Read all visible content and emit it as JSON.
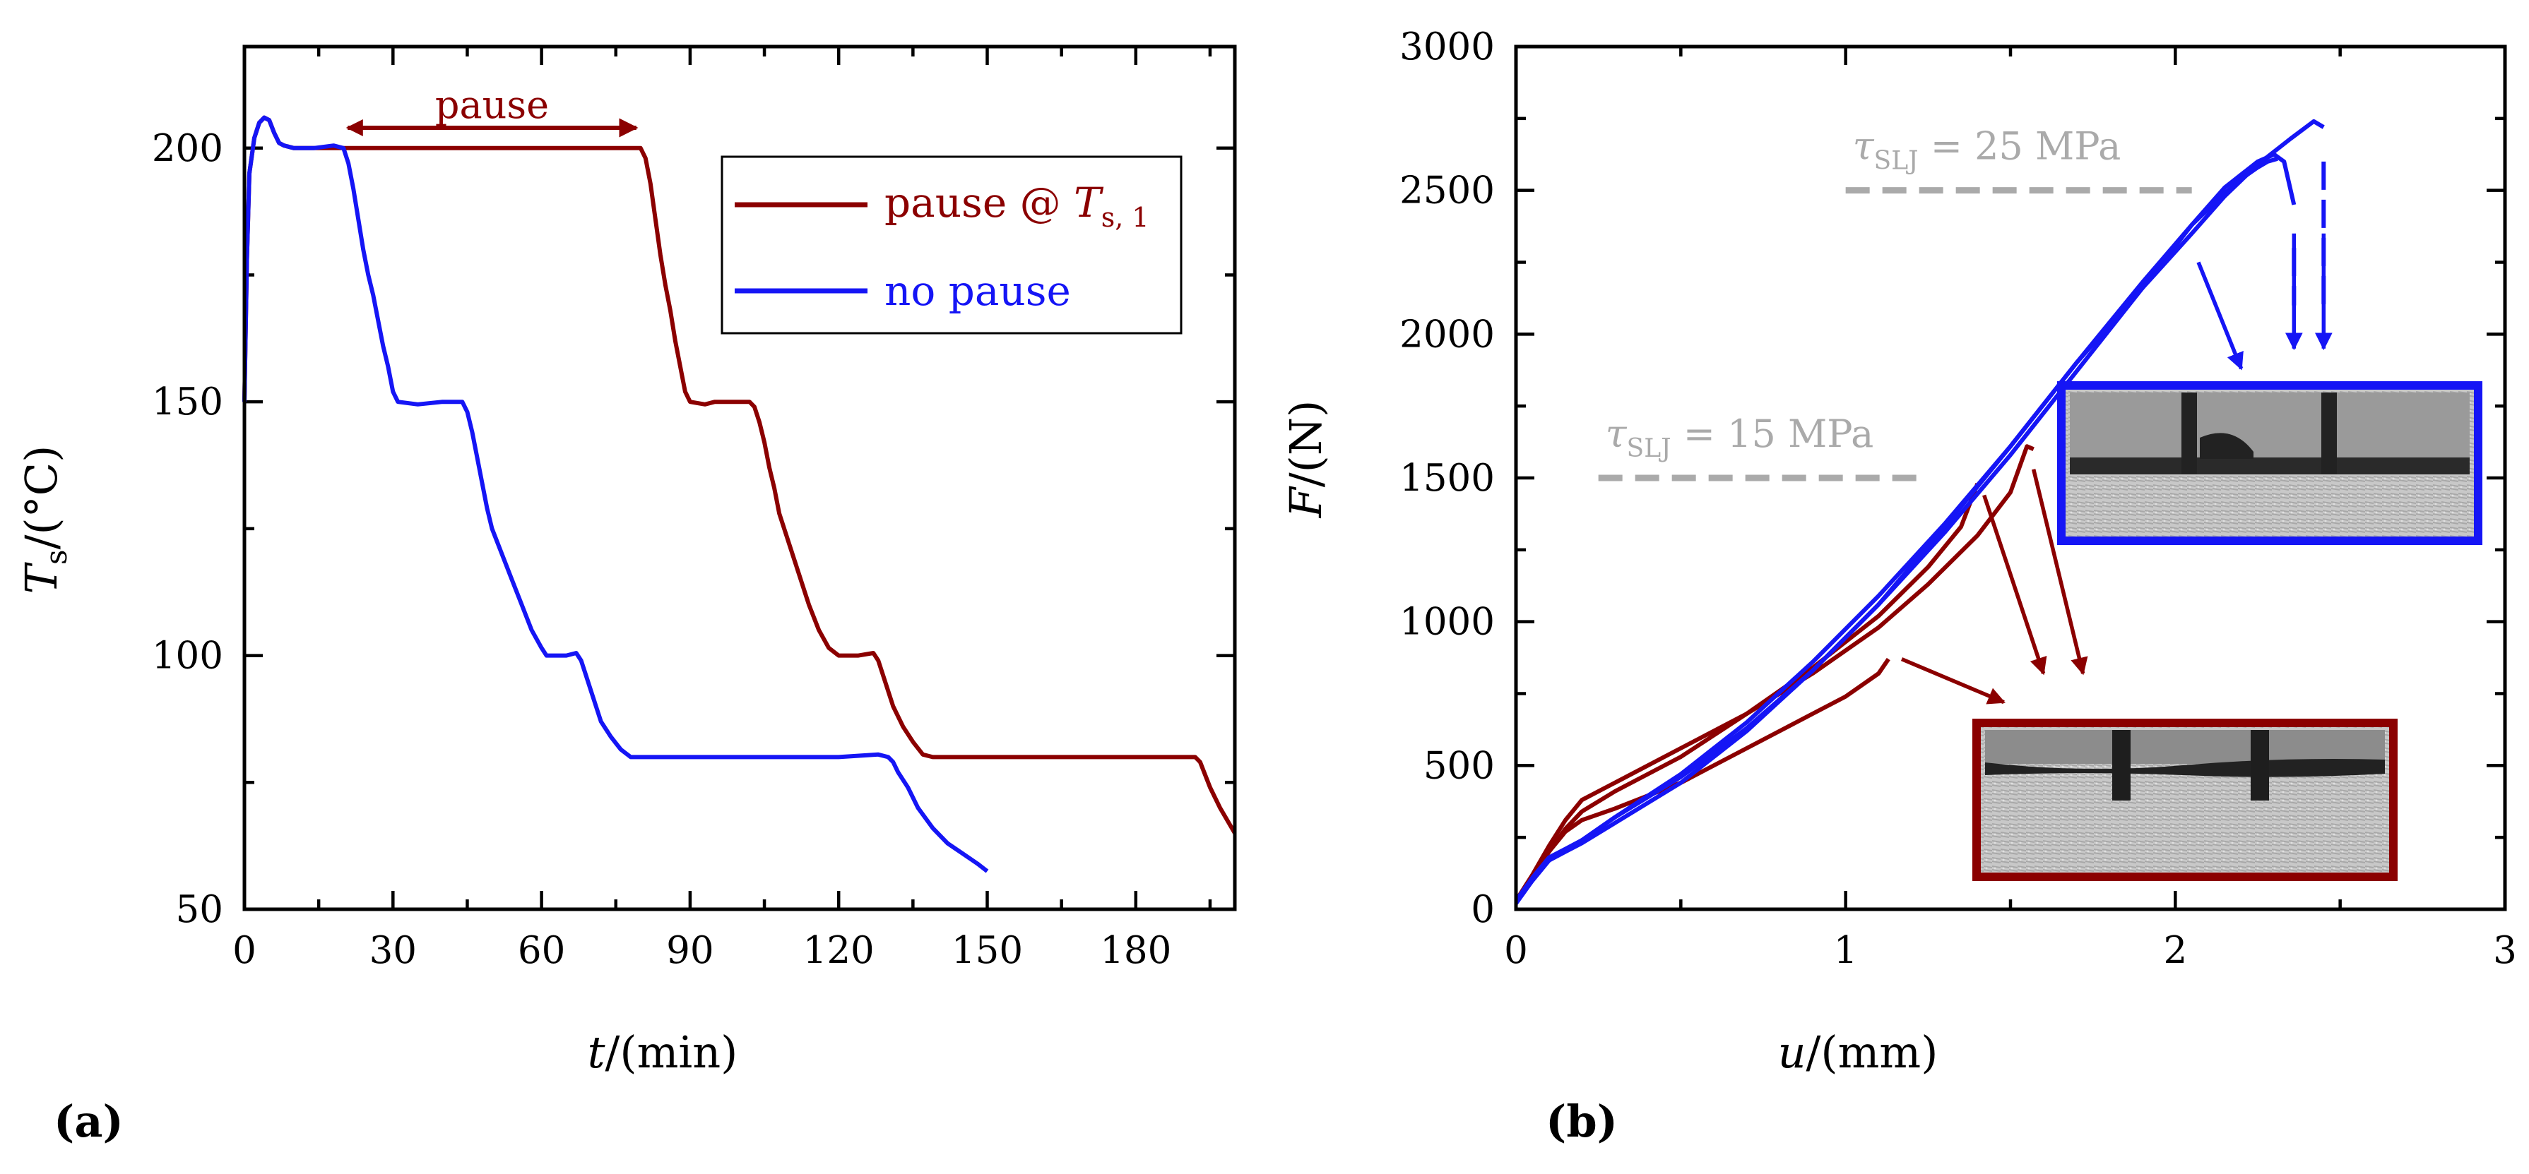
{
  "figure": {
    "panel_a_label": "(a)",
    "panel_b_label": "(b)"
  },
  "colors": {
    "red": "#8B0000",
    "blue": "#1515F5",
    "gray": "#AAAAAA",
    "axis": "#000000"
  },
  "chart_data": [
    {
      "id": "a",
      "type": "line",
      "xlabel_var": "t",
      "xlabel_unit": "/(min)",
      "ylabel_var": "T",
      "ylabel_sub": "s",
      "ylabel_unit": "/(°C)",
      "xlim": [
        0,
        200
      ],
      "ylim": [
        50,
        220
      ],
      "xticks": [
        0,
        30,
        60,
        90,
        120,
        150,
        180
      ],
      "yticks": [
        50,
        100,
        150,
        200
      ],
      "annotation": {
        "text": "pause",
        "x_start": 20,
        "x_end": 80,
        "y": 204
      },
      "legend": {
        "location": "top-right",
        "entries": [
          {
            "label": "pause @ ",
            "label_var": "T",
            "label_sub": "s, 1",
            "series": "pause"
          },
          {
            "label": "no pause",
            "series": "no_pause"
          }
        ]
      },
      "series": [
        {
          "name": "pause",
          "color": "#8B0000",
          "points": [
            [
              0,
              150
            ],
            [
              0.5,
              178
            ],
            [
              1,
              195
            ],
            [
              2,
              202
            ],
            [
              3,
              205
            ],
            [
              4,
              206
            ],
            [
              5,
              205.5
            ],
            [
              6,
              203
            ],
            [
              7,
              201
            ],
            [
              8,
              200.5
            ],
            [
              10,
              200
            ],
            [
              14,
              200
            ],
            [
              20,
              200
            ],
            [
              30,
              200
            ],
            [
              40,
              200
            ],
            [
              50,
              200
            ],
            [
              60,
              200
            ],
            [
              70,
              200
            ],
            [
              78,
              200
            ],
            [
              80,
              200
            ],
            [
              81,
              198
            ],
            [
              82,
              193
            ],
            [
              83,
              186
            ],
            [
              84,
              179
            ],
            [
              85,
              173
            ],
            [
              86,
              168
            ],
            [
              87,
              162
            ],
            [
              88,
              157
            ],
            [
              89,
              152
            ],
            [
              90,
              150
            ],
            [
              93,
              149.5
            ],
            [
              95,
              150
            ],
            [
              98,
              150
            ],
            [
              100,
              150
            ],
            [
              102,
              150
            ],
            [
              103,
              149
            ],
            [
              104,
              146
            ],
            [
              105,
              142
            ],
            [
              106,
              137
            ],
            [
              107,
              133
            ],
            [
              108,
              128
            ],
            [
              110,
              122
            ],
            [
              112,
              116
            ],
            [
              114,
              110
            ],
            [
              116,
              105
            ],
            [
              118,
              101.5
            ],
            [
              120,
              100
            ],
            [
              124,
              100
            ],
            [
              127,
              100.5
            ],
            [
              128,
              99
            ],
            [
              129,
              96
            ],
            [
              130,
              93
            ],
            [
              131,
              90
            ],
            [
              133,
              86
            ],
            [
              135,
              83
            ],
            [
              137,
              80.5
            ],
            [
              139,
              80
            ],
            [
              150,
              80
            ],
            [
              160,
              80
            ],
            [
              170,
              80
            ],
            [
              180,
              80
            ],
            [
              190,
              80
            ],
            [
              192,
              80
            ],
            [
              193,
              79
            ],
            [
              195,
              74
            ],
            [
              197,
              70
            ],
            [
              200,
              65
            ]
          ]
        },
        {
          "name": "no_pause",
          "color": "#1515F5",
          "points": [
            [
              0,
              150
            ],
            [
              0.5,
              178
            ],
            [
              1,
              195
            ],
            [
              2,
              202
            ],
            [
              3,
              205
            ],
            [
              4,
              206
            ],
            [
              5,
              205.5
            ],
            [
              6,
              203
            ],
            [
              7,
              201
            ],
            [
              8,
              200.5
            ],
            [
              10,
              200
            ],
            [
              14,
              200
            ],
            [
              18,
              200.5
            ],
            [
              20,
              200
            ],
            [
              21,
              197
            ],
            [
              22,
              192
            ],
            [
              23,
              186
            ],
            [
              24,
              180
            ],
            [
              25,
              175
            ],
            [
              26,
              171
            ],
            [
              27,
              166
            ],
            [
              28,
              161
            ],
            [
              29,
              157
            ],
            [
              30,
              152
            ],
            [
              31,
              150
            ],
            [
              35,
              149.5
            ],
            [
              40,
              150
            ],
            [
              44,
              150
            ],
            [
              45,
              148
            ],
            [
              46,
              144
            ],
            [
              47,
              139
            ],
            [
              48,
              134
            ],
            [
              49,
              129
            ],
            [
              50,
              125
            ],
            [
              52,
              120
            ],
            [
              54,
              115
            ],
            [
              56,
              110
            ],
            [
              58,
              105
            ],
            [
              60,
              101.5
            ],
            [
              61,
              100
            ],
            [
              65,
              100
            ],
            [
              67,
              100.5
            ],
            [
              68,
              99
            ],
            [
              69,
              96
            ],
            [
              70,
              93
            ],
            [
              71,
              90
            ],
            [
              72,
              87
            ],
            [
              74,
              84
            ],
            [
              76,
              81.5
            ],
            [
              78,
              80
            ],
            [
              90,
              80
            ],
            [
              100,
              80
            ],
            [
              110,
              80
            ],
            [
              120,
              80
            ],
            [
              128,
              80.5
            ],
            [
              130,
              80
            ],
            [
              131,
              79
            ],
            [
              132,
              77
            ],
            [
              134,
              74
            ],
            [
              136,
              70
            ],
            [
              139,
              66
            ],
            [
              142,
              63
            ],
            [
              145,
              61
            ],
            [
              148,
              59
            ],
            [
              150,
              57.5
            ]
          ]
        }
      ]
    },
    {
      "id": "b",
      "type": "line",
      "xlabel_var": "u",
      "xlabel_unit": "/(mm)",
      "ylabel_var": "F",
      "ylabel_unit": "/(N)",
      "xlim": [
        0,
        3
      ],
      "ylim": [
        0,
        3000
      ],
      "xticks": [
        0,
        1,
        2,
        3
      ],
      "yticks": [
        0,
        500,
        1000,
        1500,
        2000,
        2500,
        3000
      ],
      "reference_lines": [
        {
          "value": 2500,
          "x_start": 1.0,
          "x_end": 2.05,
          "text_var": "τ",
          "text_sub": "SLJ",
          "text_rest": " = 25 MPa",
          "color": "#AAAAAA"
        },
        {
          "value": 1500,
          "x_start": 0.25,
          "x_end": 1.25,
          "text_var": "τ",
          "text_sub": "SLJ",
          "text_rest": " = 15 MPa",
          "color": "#AAAAAA"
        }
      ],
      "blue_curves": [
        {
          "name": "blue-1",
          "points": [
            [
              0,
              20
            ],
            [
              0.05,
              100
            ],
            [
              0.1,
              170
            ],
            [
              0.15,
              200
            ],
            [
              0.2,
              230
            ],
            [
              0.3,
              300
            ],
            [
              0.5,
              440
            ],
            [
              0.7,
              620
            ],
            [
              0.9,
              830
            ],
            [
              1.1,
              1060
            ],
            [
              1.3,
              1310
            ],
            [
              1.5,
              1580
            ],
            [
              1.7,
              1870
            ],
            [
              1.9,
              2160
            ],
            [
              2.05,
              2380
            ],
            [
              2.15,
              2510
            ],
            [
              2.25,
              2600
            ],
            [
              2.3,
              2625
            ],
            [
              2.33,
              2600
            ],
            [
              2.36,
              2450
            ]
          ],
          "drop": [
            [
              2.36,
              2300
            ],
            [
              2.36,
              2100
            ]
          ]
        },
        {
          "name": "blue-2",
          "points": [
            [
              0,
              30
            ],
            [
              0.05,
              110
            ],
            [
              0.1,
              180
            ],
            [
              0.15,
              210
            ],
            [
              0.2,
              240
            ],
            [
              0.3,
              320
            ],
            [
              0.5,
              470
            ],
            [
              0.7,
              650
            ],
            [
              0.9,
              860
            ],
            [
              1.1,
              1090
            ],
            [
              1.3,
              1340
            ],
            [
              1.5,
              1610
            ],
            [
              1.7,
              1900
            ],
            [
              1.9,
              2180
            ],
            [
              2.05,
              2380
            ],
            [
              2.15,
              2490
            ],
            [
              2.2,
              2540
            ],
            [
              2.25,
              2580
            ],
            [
              2.28,
              2600
            ],
            [
              2.31,
              2610
            ]
          ]
        },
        {
          "name": "blue-3",
          "points": [
            [
              0,
              25
            ],
            [
              0.05,
              100
            ],
            [
              0.1,
              170
            ],
            [
              0.15,
              205
            ],
            [
              0.2,
              240
            ],
            [
              0.3,
              320
            ],
            [
              0.5,
              460
            ],
            [
              0.7,
              630
            ],
            [
              0.9,
              830
            ],
            [
              1.1,
              1060
            ],
            [
              1.3,
              1330
            ],
            [
              1.5,
              1610
            ],
            [
              1.7,
              1900
            ],
            [
              1.9,
              2160
            ],
            [
              2.05,
              2350
            ],
            [
              2.15,
              2480
            ],
            [
              2.25,
              2590
            ],
            [
              2.35,
              2680
            ],
            [
              2.42,
              2740
            ],
            [
              2.45,
              2720
            ]
          ],
          "drop": [
            [
              2.45,
              2600
            ],
            [
              2.45,
              2100
            ]
          ]
        }
      ],
      "red_curves": [
        {
          "name": "red-1",
          "points": [
            [
              0,
              30
            ],
            [
              0.05,
              120
            ],
            [
              0.1,
              220
            ],
            [
              0.15,
              310
            ],
            [
              0.2,
              380
            ],
            [
              0.3,
              440
            ],
            [
              0.5,
              560
            ],
            [
              0.7,
              680
            ],
            [
              0.9,
              820
            ],
            [
              1.1,
              980
            ],
            [
              1.25,
              1130
            ],
            [
              1.4,
              1300
            ],
            [
              1.5,
              1450
            ],
            [
              1.55,
              1610
            ],
            [
              1.57,
              1600
            ]
          ]
        },
        {
          "name": "red-2",
          "points": [
            [
              0,
              30
            ],
            [
              0.05,
              110
            ],
            [
              0.1,
              200
            ],
            [
              0.15,
              280
            ],
            [
              0.2,
              340
            ],
            [
              0.3,
              410
            ],
            [
              0.5,
              530
            ],
            [
              0.7,
              680
            ],
            [
              0.9,
              840
            ],
            [
              1.1,
              1020
            ],
            [
              1.25,
              1190
            ],
            [
              1.35,
              1330
            ],
            [
              1.4,
              1480
            ]
          ]
        },
        {
          "name": "red-3",
          "points": [
            [
              0,
              30
            ],
            [
              0.05,
              110
            ],
            [
              0.1,
              200
            ],
            [
              0.15,
              270
            ],
            [
              0.2,
              310
            ],
            [
              0.3,
              350
            ],
            [
              0.5,
              440
            ],
            [
              0.7,
              560
            ],
            [
              0.9,
              680
            ],
            [
              1.0,
              740
            ],
            [
              1.1,
              820
            ],
            [
              1.13,
              870
            ]
          ]
        }
      ],
      "arrows": [
        {
          "color": "#1515F5",
          "from": [
            2.07,
            2250
          ],
          "to": [
            2.2,
            1880
          ]
        },
        {
          "color": "#1515F5",
          "from": [
            2.36,
            2350
          ],
          "to": [
            2.36,
            1950
          ]
        },
        {
          "color": "#1515F5",
          "from": [
            2.45,
            2350
          ],
          "to": [
            2.45,
            1950
          ]
        },
        {
          "color": "#8B0000",
          "from": [
            1.42,
            1440
          ],
          "to": [
            1.6,
            820
          ]
        },
        {
          "color": "#8B0000",
          "from": [
            1.57,
            1530
          ],
          "to": [
            1.72,
            820
          ]
        },
        {
          "color": "#8B0000",
          "from": [
            1.17,
            870
          ],
          "to": [
            1.48,
            720
          ]
        }
      ]
    }
  ]
}
